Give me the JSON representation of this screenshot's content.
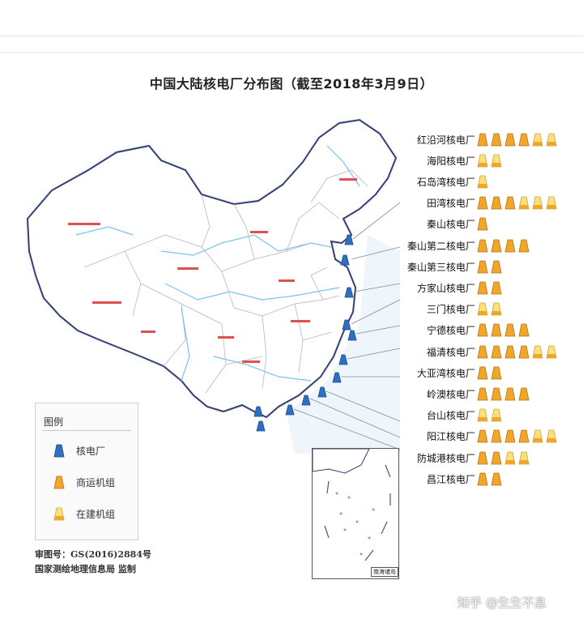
{
  "title": "中国大陆核电厂分布图（截至2018年3月9日）",
  "legend": {
    "title": "图例",
    "items": [
      {
        "label": "核电厂",
        "icon": "nuclear-plant-icon",
        "color": "#2e6fc2"
      },
      {
        "label": "商运机组",
        "icon": "operating-unit-icon",
        "color": "#f0a52b"
      },
      {
        "label": "在建机组",
        "icon": "construction-unit-icon",
        "color": "#fde07a"
      }
    ]
  },
  "plants": [
    {
      "name": "红沿河核电厂",
      "operating": 4,
      "construction": 2
    },
    {
      "name": "海阳核电厂",
      "operating": 0,
      "construction": 2
    },
    {
      "name": "石岛湾核电厂",
      "operating": 0,
      "construction": 1
    },
    {
      "name": "田湾核电厂",
      "operating": 3,
      "construction": 3
    },
    {
      "name": "秦山核电厂",
      "operating": 1,
      "construction": 0
    },
    {
      "name": "秦山第二核电厂",
      "operating": 4,
      "construction": 0
    },
    {
      "name": "秦山第三核电厂",
      "operating": 2,
      "construction": 0
    },
    {
      "name": "方家山核电厂",
      "operating": 2,
      "construction": 0
    },
    {
      "name": "三门核电厂",
      "operating": 0,
      "construction": 2
    },
    {
      "name": "宁德核电厂",
      "operating": 4,
      "construction": 0
    },
    {
      "name": "福清核电厂",
      "operating": 4,
      "construction": 2
    },
    {
      "name": "大亚湾核电厂",
      "operating": 2,
      "construction": 0
    },
    {
      "name": "岭澳核电厂",
      "operating": 4,
      "construction": 0
    },
    {
      "name": "台山核电厂",
      "operating": 0,
      "construction": 2
    },
    {
      "name": "阳江核电厂",
      "operating": 4,
      "construction": 2
    },
    {
      "name": "防城港核电厂",
      "operating": 2,
      "construction": 2
    },
    {
      "name": "昌江核电厂",
      "operating": 2,
      "construction": 0
    }
  ],
  "approval_number": "审图号：GS(2016)2884号",
  "agency": "国家测绘地理信息局  监制",
  "inset_label": "南海诸岛",
  "watermark": "知乎 @生生不息",
  "colors": {
    "land": "#ffffff",
    "border": "#3a3d6e",
    "sea": "#e8f3fb",
    "river": "#78c3e8",
    "province_label": "#e05050"
  }
}
